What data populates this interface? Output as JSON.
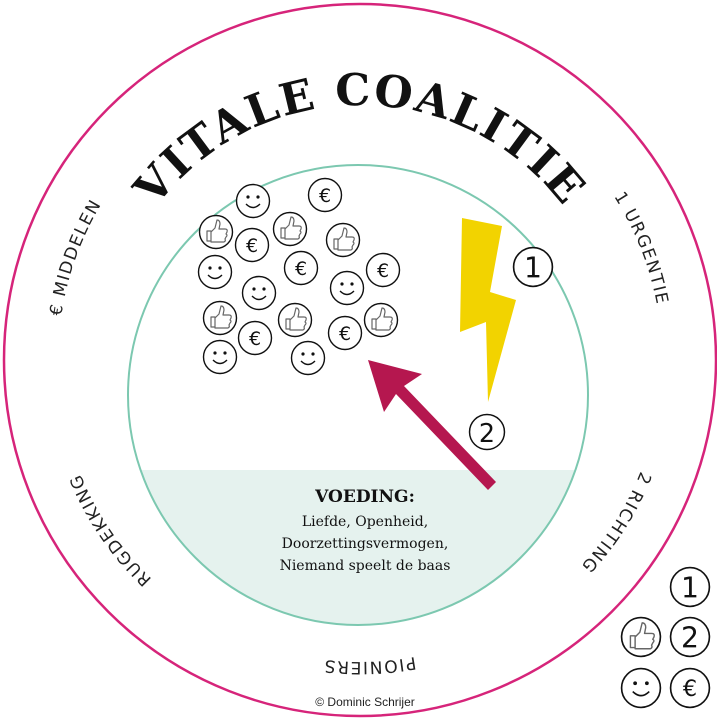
{
  "title": "VITALE COALITIE",
  "ring_labels": {
    "urgentie": "URGENTIE",
    "richting": "RICHTING",
    "pioniers": "PIONIERS",
    "rugdekking": "RUGDEKKING",
    "middelen": "MIDDELEN"
  },
  "markers": {
    "one": "1",
    "two": "2",
    "euro": "€"
  },
  "voeding": {
    "heading": "VOEDING:",
    "lines": [
      "Liefde, Openheid,",
      "Doorzettingsvermogen,",
      "Niemand speelt de baas"
    ]
  },
  "credit": "© Dominic Schrijer"
}
